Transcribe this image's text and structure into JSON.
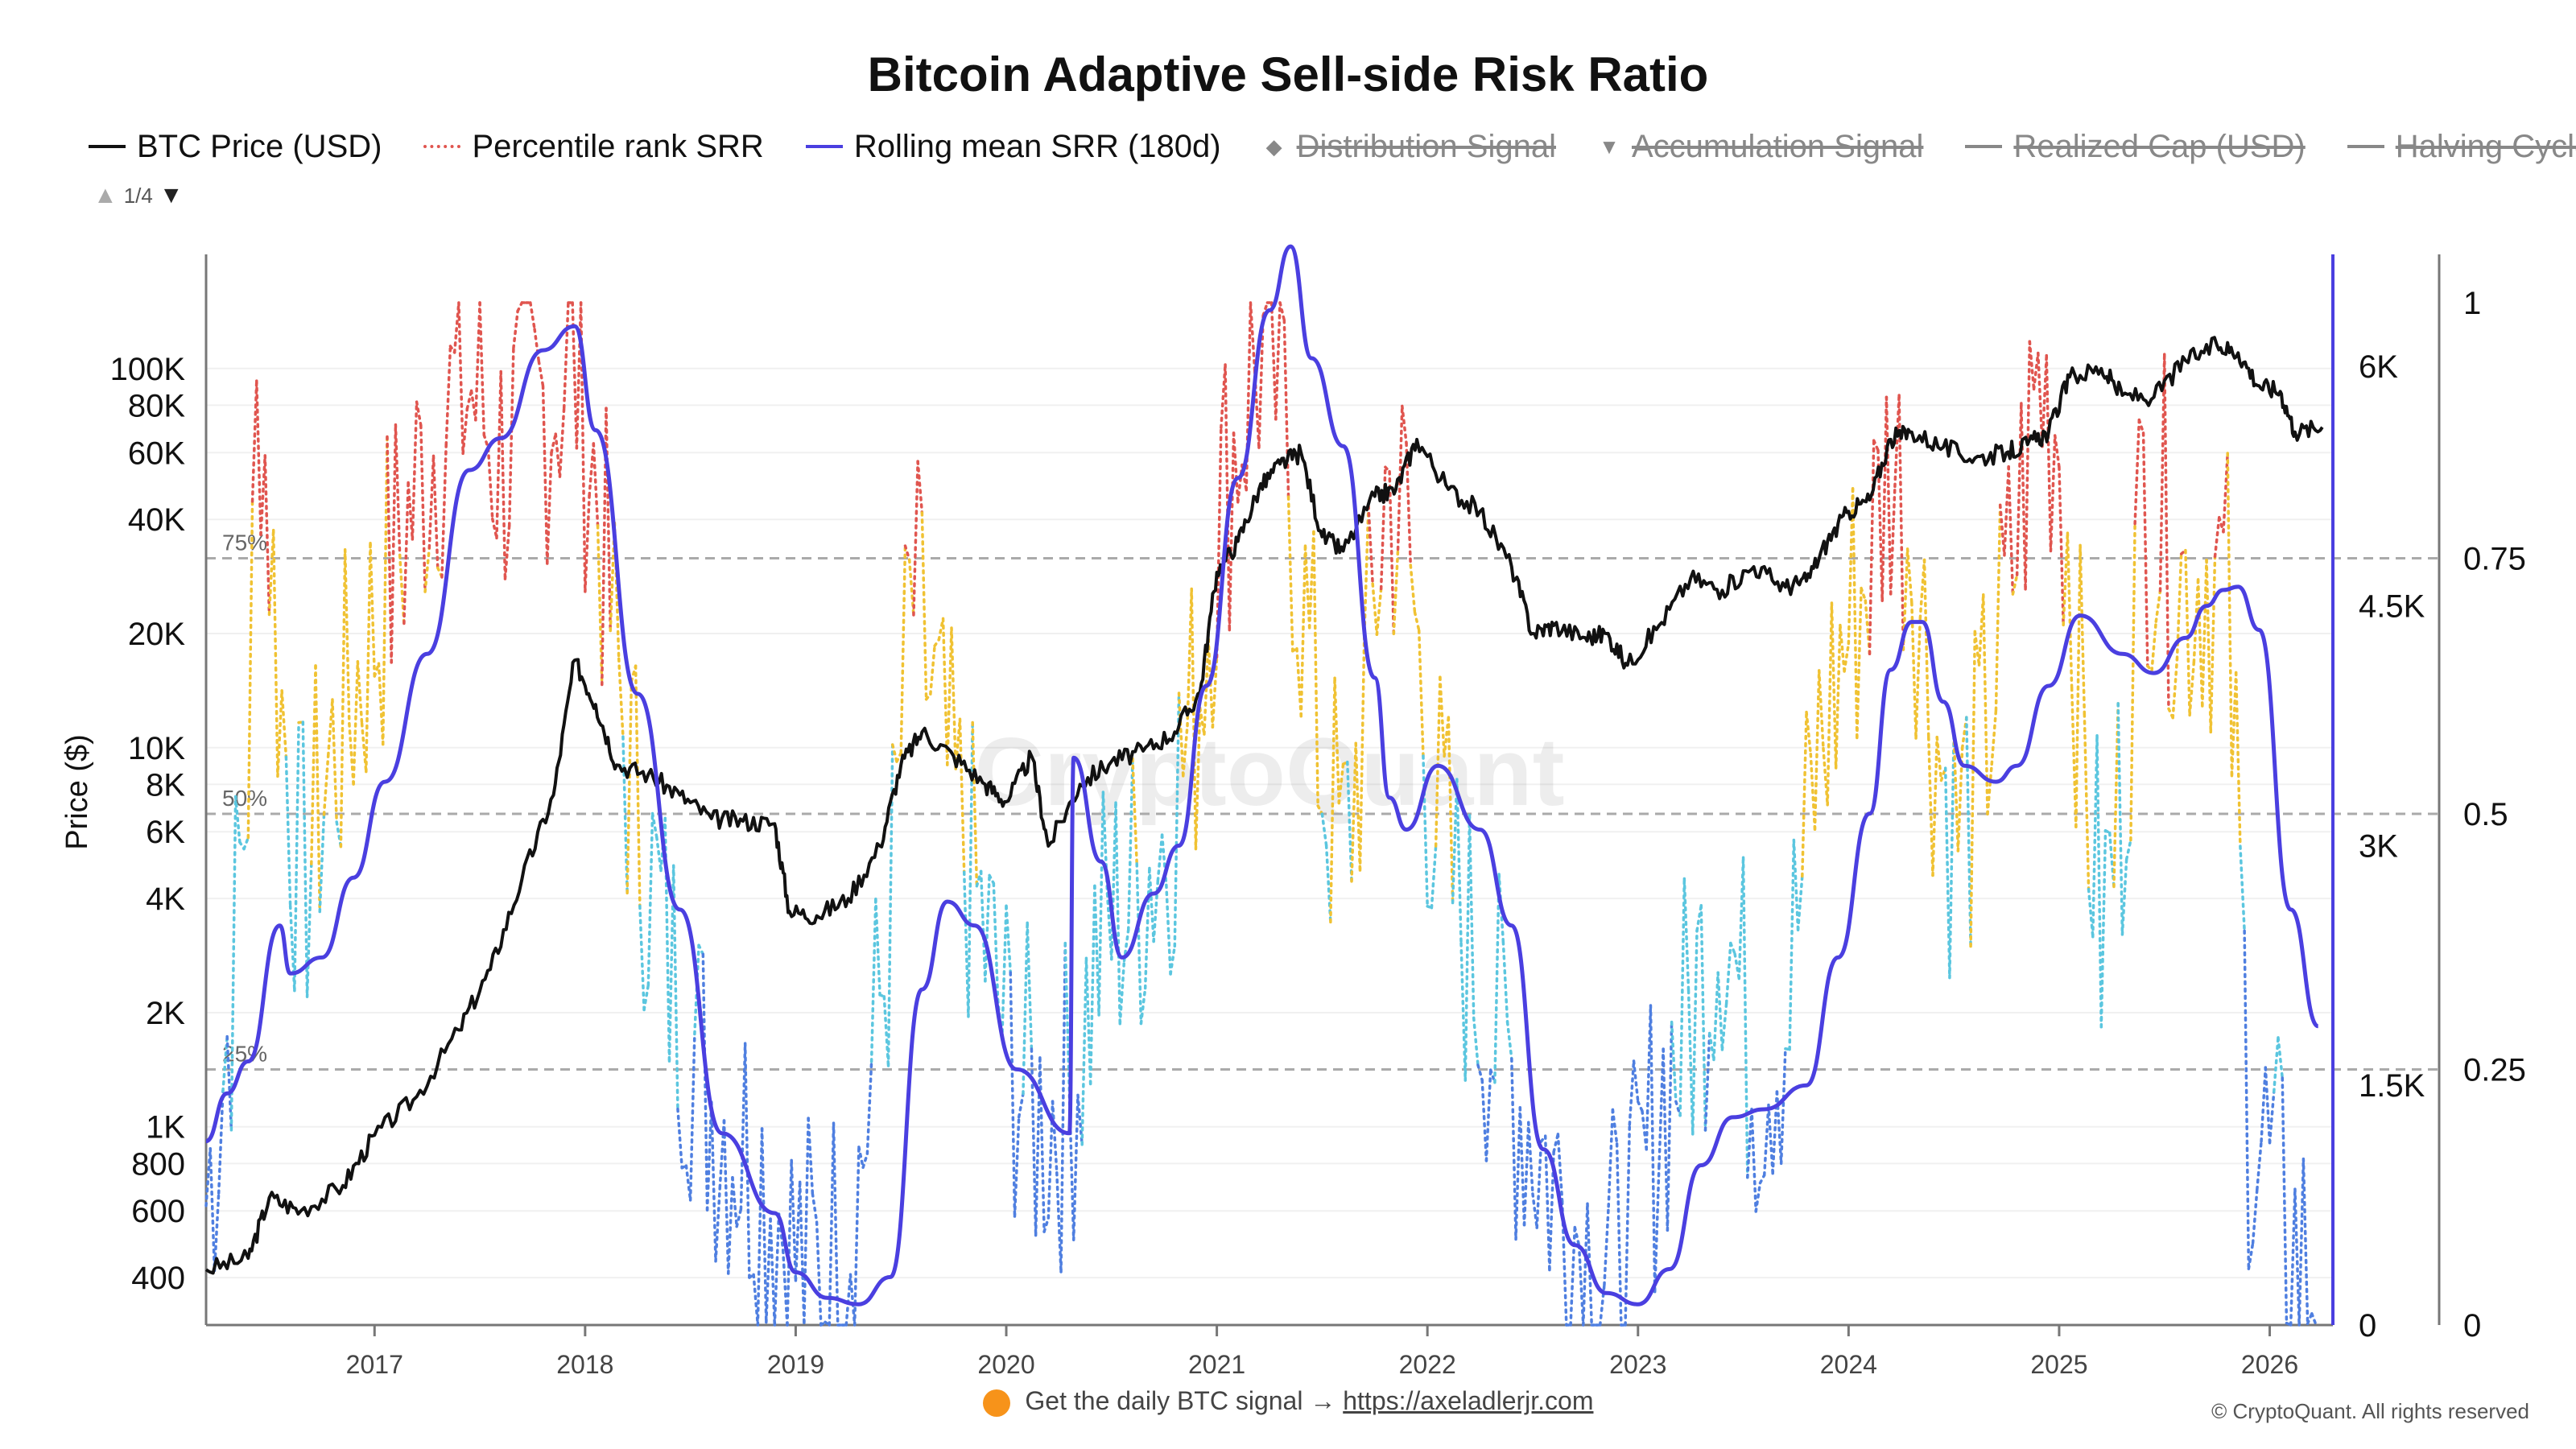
{
  "title": "Bitcoin Adaptive Sell-side Risk Ratio",
  "legend": [
    {
      "label": "BTC Price (USD)",
      "style": "solid",
      "color": "#111111",
      "active": true
    },
    {
      "label": "Percentile rank SRR",
      "style": "dotted",
      "color": "#e0554f",
      "active": true
    },
    {
      "label": "Rolling mean SRR (180d)",
      "style": "solid",
      "color": "#4a3fe0",
      "active": true
    },
    {
      "label": "Distribution Signal",
      "style": "diamond",
      "color": "#888888",
      "active": false
    },
    {
      "label": "Accumulation Signal",
      "style": "triangle",
      "color": "#888888",
      "active": false
    },
    {
      "label": "Realized Cap (USD)",
      "style": "line",
      "color": "#888888",
      "active": false
    },
    {
      "label": "Halving Cycle",
      "style": "line",
      "color": "#888888",
      "active": false
    }
  ],
  "legend_pager": {
    "text": "1/4",
    "up": "▲",
    "down": "▼"
  },
  "watermark": "CryptoQuant",
  "footer": {
    "text": "Get the daily BTC signal →",
    "link": "https://axeladlerjr.com"
  },
  "copyright": "© CryptoQuant. All rights reserved",
  "chart_data": {
    "type": "line",
    "title": "Bitcoin Adaptive Sell-side Risk Ratio",
    "x_axis": {
      "type": "time",
      "range": [
        2016.2,
        2026.3
      ],
      "ticks": [
        "2017",
        "2018",
        "2019",
        "2020",
        "2021",
        "2022",
        "2023",
        "2024",
        "2025",
        "2026"
      ]
    },
    "y_axis_left": {
      "label": "Price ($)",
      "scale": "log",
      "range": [
        300,
        200000
      ],
      "ticks": [
        "400",
        "600",
        "800",
        "1K",
        "2K",
        "4K",
        "6K",
        "8K",
        "10K",
        "20K",
        "40K",
        "60K",
        "80K",
        "100K"
      ],
      "tick_values": [
        400,
        600,
        800,
        1000,
        2000,
        4000,
        6000,
        8000,
        10000,
        20000,
        40000,
        60000,
        80000,
        100000
      ]
    },
    "y_axis_right_inner": {
      "range": [
        0,
        6700
      ],
      "ticks": [
        "0",
        "1.5K",
        "3K",
        "4.5K",
        "6K"
      ],
      "tick_values": [
        0,
        1500,
        3000,
        4500,
        6000
      ]
    },
    "y_axis_right_outer": {
      "range": [
        0,
        1
      ],
      "ticks": [
        "0",
        "0.25",
        "0.5",
        "0.75",
        "1"
      ],
      "tick_values": [
        0,
        0.25,
        0.5,
        0.75,
        1
      ]
    },
    "reference_lines": [
      {
        "label": "75%",
        "value": 0.75
      },
      {
        "label": "50%",
        "value": 0.5
      },
      {
        "label": "25%",
        "value": 0.25
      }
    ],
    "percentile_colors": {
      "low": "#4f7fe0",
      "midlow": "#5bc6df",
      "midhigh": "#f0c233",
      "high": "#e0554f"
    },
    "series": [
      {
        "name": "BTC Price (USD)",
        "axis": "left",
        "color": "#111111",
        "x": [
          2016.2,
          2016.4,
          2016.5,
          2016.65,
          2016.85,
          2017.0,
          2017.2,
          2017.4,
          2017.55,
          2017.7,
          2017.85,
          2017.95,
          2018.05,
          2018.15,
          2018.3,
          2018.45,
          2018.6,
          2018.75,
          2018.9,
          2018.97,
          2019.1,
          2019.25,
          2019.4,
          2019.5,
          2019.6,
          2019.75,
          2019.9,
          2020.0,
          2020.12,
          2020.2,
          2020.35,
          2020.5,
          2020.65,
          2020.8,
          2020.92,
          2021.0,
          2021.1,
          2021.2,
          2021.3,
          2021.4,
          2021.5,
          2021.6,
          2021.75,
          2021.85,
          2021.95,
          2022.1,
          2022.25,
          2022.4,
          2022.5,
          2022.6,
          2022.75,
          2022.85,
          2022.95,
          2023.1,
          2023.25,
          2023.4,
          2023.55,
          2023.7,
          2023.8,
          2023.9,
          2024.0,
          2024.1,
          2024.2,
          2024.3,
          2024.45,
          2024.6,
          2024.75,
          2024.85,
          2024.95,
          2025.05,
          2025.2,
          2025.3,
          2025.45,
          2025.6,
          2025.75,
          2025.85,
          2025.95,
          2026.05,
          2026.12,
          2026.25
        ],
        "values": [
          420,
          450,
          650,
          600,
          700,
          950,
          1200,
          1800,
          2600,
          4500,
          7500,
          17000,
          13000,
          9000,
          8500,
          7500,
          6500,
          6400,
          6300,
          3700,
          3600,
          4000,
          5500,
          9000,
          11000,
          9500,
          8000,
          7200,
          9500,
          5500,
          8000,
          9200,
          9800,
          11000,
          14000,
          29000,
          35000,
          48000,
          56000,
          60000,
          36000,
          33000,
          46000,
          48000,
          65000,
          48000,
          42000,
          30000,
          20000,
          21000,
          19500,
          20000,
          16500,
          21000,
          28000,
          26000,
          30000,
          26500,
          27500,
          35000,
          42000,
          45000,
          65000,
          68000,
          62000,
          58000,
          60000,
          63000,
          68000,
          95000,
          100000,
          85000,
          84000,
          105000,
          115000,
          110000,
          90000,
          87000,
          68000,
          70000
        ]
      },
      {
        "name": "Rolling mean SRR (180d)",
        "axis": "right_inner",
        "color": "#4a3fe0",
        "x": [
          2016.2,
          2016.3,
          2016.4,
          2016.55,
          2016.6,
          2016.75,
          2016.9,
          2017.05,
          2017.25,
          2017.45,
          2017.6,
          2017.8,
          2017.95,
          2018.05,
          2018.25,
          2018.45,
          2018.65,
          2018.9,
          2019.0,
          2019.15,
          2019.3,
          2019.45,
          2019.6,
          2019.72,
          2019.85,
          2020.05,
          2020.3,
          2020.32,
          2020.45,
          2020.55,
          2020.7,
          2020.82,
          2020.95,
          2021.1,
          2021.25,
          2021.35,
          2021.45,
          2021.6,
          2021.75,
          2021.82,
          2021.9,
          2022.05,
          2022.25,
          2022.4,
          2022.55,
          2022.7,
          2022.85,
          2023.0,
          2023.15,
          2023.3,
          2023.45,
          2023.6,
          2023.8,
          2023.95,
          2024.1,
          2024.2,
          2024.3,
          2024.35,
          2024.45,
          2024.55,
          2024.7,
          2024.8,
          2024.95,
          2025.1,
          2025.3,
          2025.45,
          2025.6,
          2025.7,
          2025.78,
          2025.85,
          2025.95,
          2026.1,
          2026.23
        ],
        "values": [
          1150,
          1450,
          1650,
          2500,
          2200,
          2300,
          2800,
          3400,
          4200,
          5350,
          5550,
          6100,
          6250,
          5600,
          3950,
          2600,
          1200,
          700,
          330,
          170,
          130,
          300,
          2100,
          2650,
          2500,
          1600,
          1200,
          3550,
          2900,
          2300,
          2700,
          3000,
          4000,
          5300,
          6350,
          6750,
          6050,
          5500,
          4050,
          3300,
          3100,
          3500,
          3100,
          2500,
          1100,
          500,
          200,
          130,
          350,
          1000,
          1300,
          1350,
          1500,
          2300,
          3200,
          4100,
          4400,
          4400,
          3900,
          3500,
          3400,
          3500,
          4000,
          4440,
          4200,
          4080,
          4300,
          4500,
          4600,
          4620,
          4350,
          2600,
          1870
        ]
      }
    ],
    "srr_points_note": "Percentile rank SRR dotted series (0-1, right outer axis), color-banded by quartile",
    "srr_percentile": {
      "x_start": 2016.2,
      "x_end": 2026.23,
      "step": 0.02,
      "anchors_x": [
        2016.2,
        2016.3,
        2016.4,
        2016.45,
        2016.55,
        2016.65,
        2016.75,
        2016.9,
        2017.1,
        2017.3,
        2017.45,
        2017.6,
        2017.8,
        2017.95,
        2018.05,
        2018.2,
        2018.4,
        2018.6,
        2018.75,
        2018.9,
        2019.0,
        2019.15,
        2019.3,
        2019.45,
        2019.55,
        2019.7,
        2019.85,
        2020.0,
        2020.15,
        2020.3,
        2020.45,
        2020.6,
        2020.75,
        2020.9,
        2021.0,
        2021.1,
        2021.2,
        2021.3,
        2021.4,
        2021.5,
        2021.6,
        2021.7,
        2021.8,
        2021.9,
        2022.0,
        2022.15,
        2022.3,
        2022.45,
        2022.6,
        2022.75,
        2022.9,
        2023.0,
        2023.1,
        2023.25,
        2023.4,
        2023.55,
        2023.7,
        2023.85,
        2024.0,
        2024.1,
        2024.2,
        2024.3,
        2024.4,
        2024.5,
        2024.6,
        2024.75,
        2024.9,
        2025.0,
        2025.1,
        2025.2,
        2025.3,
        2025.4,
        2025.5,
        2025.6,
        2025.7,
        2025.8,
        2025.9,
        2026.0,
        2026.1,
        2026.23
      ],
      "anchors_v": [
        0.12,
        0.28,
        0.55,
        0.95,
        0.62,
        0.42,
        0.52,
        0.62,
        0.75,
        0.88,
        0.92,
        0.85,
        0.9,
        0.95,
        0.82,
        0.55,
        0.35,
        0.22,
        0.18,
        0.13,
        0.06,
        0.05,
        0.14,
        0.4,
        0.72,
        0.55,
        0.42,
        0.28,
        0.2,
        0.22,
        0.38,
        0.42,
        0.48,
        0.6,
        0.78,
        0.88,
        0.95,
        0.92,
        0.72,
        0.55,
        0.45,
        0.6,
        0.82,
        0.78,
        0.55,
        0.4,
        0.3,
        0.22,
        0.14,
        0.08,
        0.05,
        0.1,
        0.22,
        0.3,
        0.42,
        0.25,
        0.3,
        0.55,
        0.68,
        0.75,
        0.85,
        0.78,
        0.6,
        0.48,
        0.52,
        0.7,
        0.92,
        0.88,
        0.6,
        0.38,
        0.52,
        0.82,
        0.78,
        0.72,
        0.75,
        0.7,
        0.22,
        0.15,
        0.08,
        0.04
      ]
    }
  }
}
